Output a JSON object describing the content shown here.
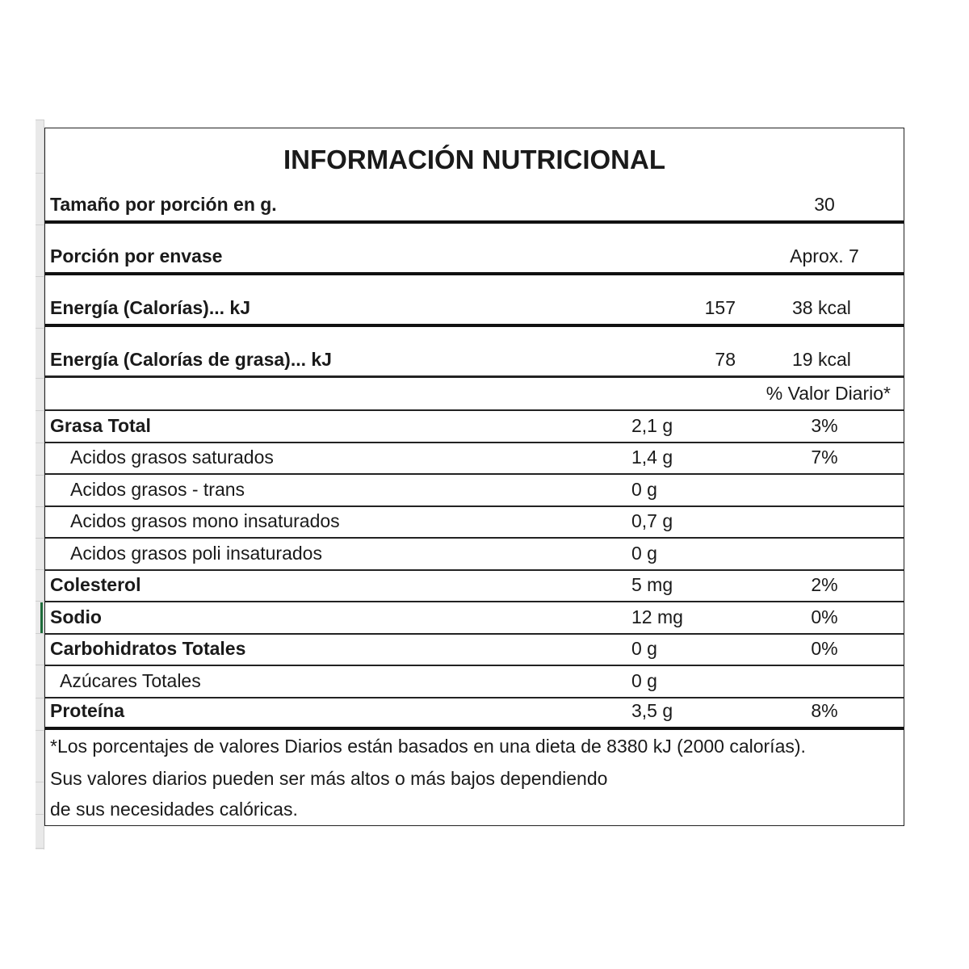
{
  "title": "INFORMACIÓN NUTRICIONAL",
  "serving_size": {
    "label": "Tamaño por porción en g.",
    "value": "30"
  },
  "servings_per_container": {
    "label": "Porción por envase",
    "value": "Aprox. 7"
  },
  "energy": {
    "label": "Energía (Calorías)... kJ",
    "kj": "157",
    "kcal": "38 kcal"
  },
  "energy_fat": {
    "label": "Energía (Calorías de grasa)... kJ",
    "kj": "78",
    "kcal": "19 kcal"
  },
  "daily_value_header": "% Valor Diario*",
  "nutrients": [
    {
      "label": "Grasa Total",
      "amount": "2,1 g",
      "pct": "3%"
    },
    {
      "label": "Acidos grasos saturados",
      "amount": "1,4 g",
      "pct": "7%"
    },
    {
      "label": "Acidos grasos - trans",
      "amount": "0 g",
      "pct": ""
    },
    {
      "label": "Acidos grasos mono insaturados",
      "amount": "0,7 g",
      "pct": ""
    },
    {
      "label": "Acidos grasos poli insaturados",
      "amount": "0 g",
      "pct": ""
    },
    {
      "label": "Colesterol",
      "amount": "5 mg",
      "pct": "2%"
    },
    {
      "label": "Sodio",
      "amount": "12 mg",
      "pct": "0%"
    },
    {
      "label": "Carbohidratos Totales",
      "amount": "0 g",
      "pct": "0%"
    },
    {
      "label": "Azúcares Totales",
      "amount": "0 g",
      "pct": ""
    },
    {
      "label": "Proteína",
      "amount": "3,5 g",
      "pct": "8%"
    }
  ],
  "footnote": [
    "*Los porcentajes de valores Diarios están basados en una dieta de 8380 kJ (2000 calorías).",
    "Sus valores diarios pueden ser más altos o más bajos dependiendo",
    "de sus necesidades calóricas."
  ]
}
